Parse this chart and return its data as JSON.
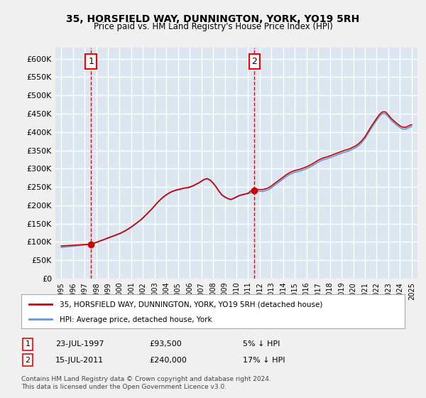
{
  "title": "35, HORSFIELD WAY, DUNNINGTON, YORK, YO19 5RH",
  "subtitle": "Price paid vs. HM Land Registry's House Price Index (HPI)",
  "ylabel_ticks": [
    "£0",
    "£50K",
    "£100K",
    "£150K",
    "£200K",
    "£250K",
    "£300K",
    "£350K",
    "£400K",
    "£450K",
    "£500K",
    "£550K",
    "£600K"
  ],
  "ytick_values": [
    0,
    50000,
    100000,
    150000,
    200000,
    250000,
    300000,
    350000,
    400000,
    450000,
    500000,
    550000,
    600000
  ],
  "ylim": [
    0,
    630000
  ],
  "xlim_start": 1994.5,
  "xlim_end": 2025.5,
  "background_color": "#dce6f0",
  "plot_bg_color": "#dce6f0",
  "grid_color": "#ffffff",
  "sale1_date": 1997.55,
  "sale1_price": 93500,
  "sale2_date": 2011.54,
  "sale2_price": 240000,
  "legend_line1": "35, HORSFIELD WAY, DUNNINGTON, YORK, YO19 5RH (detached house)",
  "legend_line2": "HPI: Average price, detached house, York",
  "annotation1": "1   23-JUL-1997         £93,500         5% ↓ HPI",
  "annotation2": "2   15-JUL-2011         £240,000       17% ↓ HPI",
  "footer": "Contains HM Land Registry data © Crown copyright and database right 2024.\nThis data is licensed under the Open Government Licence v3.0.",
  "red_line_color": "#cc0000",
  "blue_line_color": "#6699cc",
  "hpi_years": [
    1995,
    1995.25,
    1995.5,
    1995.75,
    1996,
    1996.25,
    1996.5,
    1996.75,
    1997,
    1997.25,
    1997.5,
    1997.75,
    1998,
    1998.25,
    1998.5,
    1998.75,
    1999,
    1999.25,
    1999.5,
    1999.75,
    2000,
    2000.25,
    2000.5,
    2000.75,
    2001,
    2001.25,
    2001.5,
    2001.75,
    2002,
    2002.25,
    2002.5,
    2002.75,
    2003,
    2003.25,
    2003.5,
    2003.75,
    2004,
    2004.25,
    2004.5,
    2004.75,
    2005,
    2005.25,
    2005.5,
    2005.75,
    2006,
    2006.25,
    2006.5,
    2006.75,
    2007,
    2007.25,
    2007.5,
    2007.75,
    2008,
    2008.25,
    2008.5,
    2008.75,
    2009,
    2009.25,
    2009.5,
    2009.75,
    2010,
    2010.25,
    2010.5,
    2010.75,
    2011,
    2011.25,
    2011.5,
    2011.75,
    2012,
    2012.25,
    2012.5,
    2012.75,
    2013,
    2013.25,
    2013.5,
    2013.75,
    2014,
    2014.25,
    2014.5,
    2014.75,
    2015,
    2015.25,
    2015.5,
    2015.75,
    2016,
    2016.25,
    2016.5,
    2016.75,
    2017,
    2017.25,
    2017.5,
    2017.75,
    2018,
    2018.25,
    2018.5,
    2018.75,
    2019,
    2019.25,
    2019.5,
    2019.75,
    2020,
    2020.25,
    2020.5,
    2020.75,
    2021,
    2021.25,
    2021.5,
    2021.75,
    2022,
    2022.25,
    2022.5,
    2022.75,
    2023,
    2023.25,
    2023.5,
    2023.75,
    2024,
    2024.25,
    2024.5,
    2024.75,
    2025
  ],
  "hpi_values": [
    85000,
    86000,
    87000,
    87500,
    88000,
    89000,
    90000,
    91000,
    92000,
    93000,
    94500,
    96000,
    98000,
    101000,
    104000,
    107000,
    110000,
    113000,
    116000,
    119000,
    122000,
    126000,
    130000,
    135000,
    140000,
    146000,
    152000,
    158000,
    165000,
    173000,
    181000,
    189000,
    198000,
    207000,
    215000,
    222000,
    228000,
    233000,
    237000,
    240000,
    242000,
    244000,
    246000,
    247000,
    249000,
    252000,
    256000,
    260000,
    265000,
    270000,
    272000,
    268000,
    260000,
    250000,
    238000,
    228000,
    222000,
    218000,
    215000,
    218000,
    222000,
    226000,
    228000,
    230000,
    232000,
    234000,
    236000,
    238000,
    238000,
    238000,
    240000,
    243000,
    248000,
    254000,
    260000,
    266000,
    272000,
    278000,
    283000,
    287000,
    290000,
    292000,
    294000,
    297000,
    300000,
    304000,
    308000,
    313000,
    318000,
    322000,
    325000,
    327000,
    330000,
    333000,
    336000,
    339000,
    342000,
    345000,
    347000,
    350000,
    354000,
    358000,
    364000,
    372000,
    382000,
    395000,
    408000,
    420000,
    432000,
    443000,
    450000,
    450000,
    442000,
    432000,
    425000,
    418000,
    412000,
    408000,
    408000,
    412000,
    415000
  ],
  "red_years": [
    1995,
    1995.25,
    1995.5,
    1995.75,
    1996,
    1996.25,
    1996.5,
    1996.75,
    1997,
    1997.25,
    1997.5,
    1997.75,
    1998,
    1998.25,
    1998.5,
    1998.75,
    1999,
    1999.25,
    1999.5,
    1999.75,
    2000,
    2000.25,
    2000.5,
    2000.75,
    2001,
    2001.25,
    2001.5,
    2001.75,
    2002,
    2002.25,
    2002.5,
    2002.75,
    2003,
    2003.25,
    2003.5,
    2003.75,
    2004,
    2004.25,
    2004.5,
    2004.75,
    2005,
    2005.25,
    2005.5,
    2005.75,
    2006,
    2006.25,
    2006.5,
    2006.75,
    2007,
    2007.25,
    2007.5,
    2007.75,
    2008,
    2008.25,
    2008.5,
    2008.75,
    2009,
    2009.25,
    2009.5,
    2009.75,
    2010,
    2010.25,
    2010.5,
    2010.75,
    2011,
    2011.25,
    2011.5,
    2011.75,
    2012,
    2012.25,
    2012.5,
    2012.75,
    2013,
    2013.25,
    2013.5,
    2013.75,
    2014,
    2014.25,
    2014.5,
    2014.75,
    2015,
    2015.25,
    2015.5,
    2015.75,
    2016,
    2016.25,
    2016.5,
    2016.75,
    2017,
    2017.25,
    2017.5,
    2017.75,
    2018,
    2018.25,
    2018.5,
    2018.75,
    2019,
    2019.25,
    2019.5,
    2019.75,
    2020,
    2020.25,
    2020.5,
    2020.75,
    2021,
    2021.25,
    2021.5,
    2021.75,
    2022,
    2022.25,
    2022.5,
    2022.75,
    2023,
    2023.25,
    2023.5,
    2023.75,
    2024,
    2024.25,
    2024.5,
    2024.75,
    2025
  ],
  "red_values": [
    89000,
    89500,
    90000,
    90500,
    91000,
    91500,
    92000,
    92500,
    93000,
    93500,
    94000,
    96000,
    99000,
    102000,
    105000,
    108000,
    111000,
    114000,
    117000,
    120000,
    123000,
    127000,
    131000,
    136000,
    141000,
    147000,
    153000,
    159000,
    166000,
    174000,
    182000,
    190000,
    199000,
    208000,
    216000,
    223000,
    229000,
    234000,
    238000,
    241000,
    243000,
    245000,
    247000,
    248000,
    250000,
    253000,
    257000,
    261000,
    266000,
    271000,
    273000,
    269000,
    261000,
    251000,
    239000,
    229000,
    223000,
    219000,
    216000,
    219000,
    223000,
    227000,
    229000,
    231000,
    233000,
    240000,
    241000,
    243000,
    243000,
    243000,
    245000,
    248000,
    253000,
    259000,
    265000,
    271000,
    277000,
    283000,
    288000,
    292000,
    295000,
    297000,
    299000,
    302000,
    305000,
    309000,
    313000,
    318000,
    323000,
    327000,
    330000,
    332000,
    335000,
    338000,
    341000,
    344000,
    347000,
    350000,
    352000,
    355000,
    359000,
    363000,
    369000,
    377000,
    387000,
    400000,
    413000,
    425000,
    437000,
    448000,
    455000,
    455000,
    447000,
    437000,
    430000,
    423000,
    417000,
    413000,
    413000,
    417000,
    420000
  ],
  "xtick_years": [
    1995,
    1996,
    1997,
    1998,
    1999,
    2000,
    2001,
    2002,
    2003,
    2004,
    2005,
    2006,
    2007,
    2008,
    2009,
    2010,
    2011,
    2012,
    2013,
    2014,
    2015,
    2016,
    2017,
    2018,
    2019,
    2020,
    2021,
    2022,
    2023,
    2024,
    2025
  ]
}
